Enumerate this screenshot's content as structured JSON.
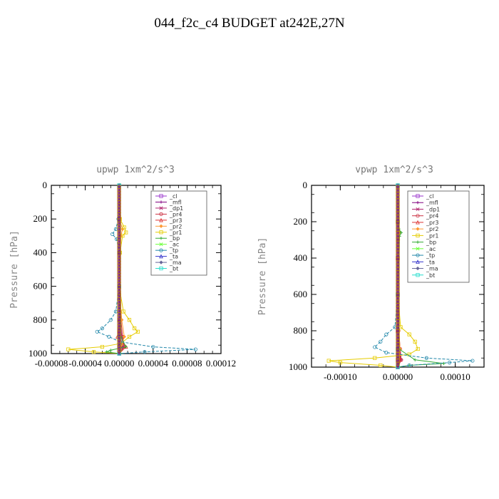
{
  "title": "044_f2c_c4  BUDGET at242E,27N",
  "chart_data": [
    {
      "type": "line",
      "title": "upwp   1xm^2/s^3",
      "ylabel": "Pressure [hPa]",
      "xlabel": "",
      "xlim": [
        -8e-05,
        0.00012
      ],
      "ylim": [
        1000,
        0
      ],
      "xticks": [
        -8e-05,
        -4e-05,
        0.0,
        4e-05,
        8e-05,
        0.00012
      ],
      "xtick_labels": [
        "-0.00008",
        "-0.00004",
        "0.00000",
        "0.00004",
        "0.00008",
        "0.00012"
      ],
      "yticks": [
        0,
        200,
        400,
        600,
        800,
        1000
      ],
      "ytick_labels": [
        "0",
        "200",
        "400",
        "600",
        "800",
        "1000"
      ],
      "legend_position": "top-right",
      "series": [
        {
          "name": "_cl",
          "color": "#9933cc",
          "y": [
            0,
            200,
            400,
            600,
            800,
            900,
            960,
            1000
          ],
          "x": [
            0,
            0,
            0,
            0,
            0,
            0,
            0,
            0
          ]
        },
        {
          "name": "_mfl",
          "color": "#800080",
          "y": [
            0,
            200,
            400,
            600,
            800,
            900,
            960,
            1000
          ],
          "x": [
            0,
            0,
            0,
            0,
            1e-06,
            2e-06,
            3e-06,
            0
          ]
        },
        {
          "name": "_dp1",
          "color": "#b0226e",
          "y": [
            0,
            200,
            400,
            600,
            800,
            900,
            960,
            1000
          ],
          "x": [
            0,
            0,
            0,
            0,
            1e-06,
            3e-06,
            5e-06,
            0
          ]
        },
        {
          "name": "_pr4",
          "color": "#cc3344",
          "y": [
            0,
            200,
            400,
            600,
            800,
            900,
            960,
            1000
          ],
          "x": [
            0,
            0,
            0,
            0,
            2e-06,
            4e-06,
            6e-06,
            0
          ]
        },
        {
          "name": "_pr3",
          "color": "#dd3333",
          "y": [
            0,
            200,
            400,
            600,
            800,
            900,
            960,
            1000
          ],
          "x": [
            0,
            0,
            0,
            0,
            0,
            -2e-06,
            8e-06,
            0
          ]
        },
        {
          "name": "_pr2",
          "color": "#ff9933",
          "y": [
            0,
            200,
            260,
            300,
            400,
            600,
            800,
            900,
            1000
          ],
          "x": [
            0,
            0,
            4e-06,
            2e-06,
            0,
            0,
            3e-06,
            6e-06,
            0
          ]
        },
        {
          "name": "_pr1",
          "color": "#e6cc00",
          "y": [
            0,
            200,
            250,
            280,
            300,
            400,
            600,
            750,
            800,
            850,
            870,
            900,
            940,
            960,
            975,
            990,
            1000
          ],
          "x": [
            0,
            1e-06,
            6e-06,
            8e-06,
            4e-06,
            1e-06,
            0,
            5e-06,
            1.2e-05,
            1.8e-05,
            2.2e-05,
            1.2e-05,
            2e-06,
            -2e-05,
            -6e-05,
            -3e-05,
            0
          ]
        },
        {
          "name": "_bp",
          "color": "#33aa33",
          "y": [
            0,
            600,
            900,
            960,
            980,
            990,
            1000
          ],
          "x": [
            0,
            0,
            2e-06,
            8e-06,
            -1e-05,
            -1.5e-05,
            0
          ]
        },
        {
          "name": "_ac",
          "color": "#66ff33",
          "y": [
            0,
            600,
            950,
            990,
            1000
          ],
          "x": [
            0,
            0,
            0,
            1e-06,
            0
          ]
        },
        {
          "name": "_tp",
          "color": "#2288aa",
          "y": [
            0,
            200,
            260,
            290,
            320,
            400,
            600,
            750,
            800,
            850,
            870,
            900,
            930,
            960,
            975,
            990,
            1000
          ],
          "x": [
            0,
            -1e-06,
            -4e-06,
            -8e-06,
            -3e-06,
            0,
            0,
            -4e-06,
            -1e-05,
            -2e-05,
            -2.6e-05,
            -1.2e-05,
            1e-06,
            4e-05,
            9e-05,
            3e-05,
            0
          ]
        },
        {
          "name": "_ta",
          "color": "#3333cc",
          "y": [
            0,
            600,
            900,
            1000
          ],
          "x": [
            0,
            0,
            0,
            0
          ]
        },
        {
          "name": "_ma",
          "color": "#666699",
          "y": [
            0,
            600,
            900,
            1000
          ],
          "x": [
            0,
            0,
            0,
            0
          ]
        },
        {
          "name": "_bt",
          "color": "#22ddcc",
          "y": [
            0,
            600,
            900,
            1000
          ],
          "x": [
            0,
            0,
            0,
            0
          ]
        }
      ]
    },
    {
      "type": "line",
      "title": "vpwp   1xm^2/s^3",
      "ylabel": "Pressure [hPa]",
      "xlabel": "",
      "xlim": [
        -0.00015,
        0.00015
      ],
      "ylim": [
        1000,
        0
      ],
      "xticks": [
        -0.0001,
        0.0,
        0.0001
      ],
      "xtick_labels": [
        "-0.00010",
        "0.00000",
        "0.00010"
      ],
      "yticks": [
        0,
        200,
        400,
        600,
        800,
        1000
      ],
      "ytick_labels": [
        "0",
        "200",
        "400",
        "600",
        "800",
        "1000"
      ],
      "legend_position": "top-right",
      "series": [
        {
          "name": "_cl",
          "color": "#9933cc",
          "y": [
            0,
            200,
            400,
            600,
            800,
            900,
            960,
            1000
          ],
          "x": [
            0,
            0,
            0,
            0,
            0,
            0,
            0,
            0
          ]
        },
        {
          "name": "_mfl",
          "color": "#800080",
          "y": [
            0,
            200,
            400,
            600,
            800,
            900,
            960,
            1000
          ],
          "x": [
            0,
            0,
            0,
            0,
            2e-06,
            4e-06,
            6e-06,
            0
          ]
        },
        {
          "name": "_dp1",
          "color": "#b0226e",
          "y": [
            0,
            200,
            400,
            600,
            800,
            900,
            960,
            1000
          ],
          "x": [
            0,
            0,
            0,
            0,
            1e-06,
            3e-06,
            5e-06,
            0
          ]
        },
        {
          "name": "_pr4",
          "color": "#cc3344",
          "y": [
            0,
            200,
            400,
            600,
            800,
            900,
            960,
            1000
          ],
          "x": [
            0,
            0,
            0,
            0,
            1e-06,
            4e-06,
            6e-06,
            0
          ]
        },
        {
          "name": "_pr3",
          "color": "#dd3333",
          "y": [
            0,
            200,
            400,
            600,
            800,
            900,
            960,
            1000
          ],
          "x": [
            0,
            0,
            0,
            0,
            0,
            2e-06,
            4e-06,
            0
          ]
        },
        {
          "name": "_pr2",
          "color": "#ff9933",
          "y": [
            0,
            200,
            260,
            300,
            400,
            600,
            800,
            900,
            1000
          ],
          "x": [
            0,
            0,
            3e-06,
            1e-06,
            0,
            0,
            2e-06,
            4e-06,
            0
          ]
        },
        {
          "name": "_pr1",
          "color": "#e6cc00",
          "y": [
            0,
            200,
            600,
            780,
            820,
            860,
            900,
            930,
            950,
            965,
            975,
            990,
            1000
          ],
          "x": [
            0,
            0,
            0,
            5e-06,
            2e-05,
            3e-05,
            3.5e-05,
            2e-05,
            -4e-05,
            -0.00012,
            -0.0001,
            -3e-05,
            0
          ]
        },
        {
          "name": "_bp",
          "color": "#33aa33",
          "y": [
            0,
            240,
            260,
            280,
            600,
            900,
            960,
            980,
            990,
            1000
          ],
          "x": [
            0,
            2e-06,
            6e-06,
            3e-06,
            0,
            2e-06,
            3e-05,
            8e-05,
            2e-05,
            0
          ]
        },
        {
          "name": "_ac",
          "color": "#66ff33",
          "y": [
            0,
            600,
            950,
            990,
            1000
          ],
          "x": [
            0,
            0,
            0,
            1e-06,
            0
          ]
        },
        {
          "name": "_tp",
          "color": "#2288aa",
          "y": [
            0,
            200,
            600,
            780,
            820,
            860,
            890,
            920,
            950,
            965,
            975,
            990,
            1000
          ],
          "x": [
            0,
            0,
            0,
            -5e-06,
            -2e-05,
            -3e-05,
            -4e-05,
            -2e-05,
            5e-05,
            0.00013,
            9e-05,
            2e-05,
            0
          ]
        },
        {
          "name": "_ta",
          "color": "#3333cc",
          "y": [
            0,
            600,
            900,
            1000
          ],
          "x": [
            0,
            0,
            0,
            0
          ]
        },
        {
          "name": "_ma",
          "color": "#666699",
          "y": [
            0,
            600,
            900,
            1000
          ],
          "x": [
            0,
            0,
            0,
            0
          ]
        },
        {
          "name": "_bt",
          "color": "#22ddcc",
          "y": [
            0,
            600,
            900,
            1000
          ],
          "x": [
            0,
            0,
            0,
            0
          ]
        }
      ]
    }
  ]
}
